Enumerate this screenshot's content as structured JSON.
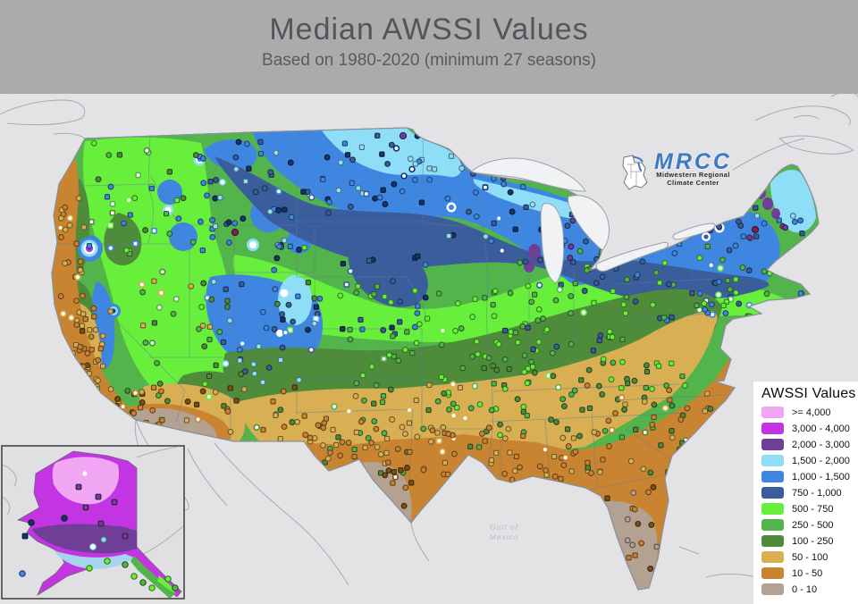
{
  "header": {
    "title": "Median AWSSI Values",
    "subtitle": "Based on 1980-2020 (minimum 27 seasons)",
    "bg": "#ababab",
    "title_color": "#50565c"
  },
  "legend": {
    "title": "AWSSI Values",
    "items": [
      {
        "key": "plum",
        "label": ">= 4,000",
        "color": "#f0a6f2"
      },
      {
        "key": "magenta",
        "label": "3,000 - 4,000",
        "color": "#c335e2"
      },
      {
        "key": "purple",
        "label": "2,000 - 3,000",
        "color": "#6f3e97"
      },
      {
        "key": "cyan",
        "label": "1,500 - 2,000",
        "color": "#8fdef8"
      },
      {
        "key": "blue",
        "label": "1,000 - 1,500",
        "color": "#3f86e0"
      },
      {
        "key": "slate",
        "label": "750 - 1,000",
        "color": "#3a5e9b"
      },
      {
        "key": "lime",
        "label": "500 - 750",
        "color": "#68ef3b"
      },
      {
        "key": "midgreen",
        "label": "250 - 500",
        "color": "#52b44b"
      },
      {
        "key": "forest",
        "label": "100 - 250",
        "color": "#4e8c3c"
      },
      {
        "key": "gold",
        "label": "50 - 100",
        "color": "#d8af52"
      },
      {
        "key": "orange",
        "label": "10 - 50",
        "color": "#c98431"
      },
      {
        "key": "graytan",
        "label": "0 - 10",
        "color": "#b3a192"
      }
    ]
  },
  "logo": {
    "acronym": "MRCC",
    "line1": "Midwestern Regional",
    "line2": "Climate Center",
    "color": "#3b79c0"
  },
  "map": {
    "bg": "#e3e3e6",
    "water_label_line1": "Gulf of",
    "water_label_line2": "Mexico",
    "outline_color": "#8a9099",
    "lake_fill": "#f1f2f4",
    "state_line_color": "#5d7a9e",
    "dot_extra_colors": {
      "navy": "#15356b",
      "dotbrown": "#7d4f16",
      "maroon": "#7c2150"
    }
  },
  "inset": {
    "border_color": "#3a3a3a",
    "bg": "#e0e0e3"
  }
}
